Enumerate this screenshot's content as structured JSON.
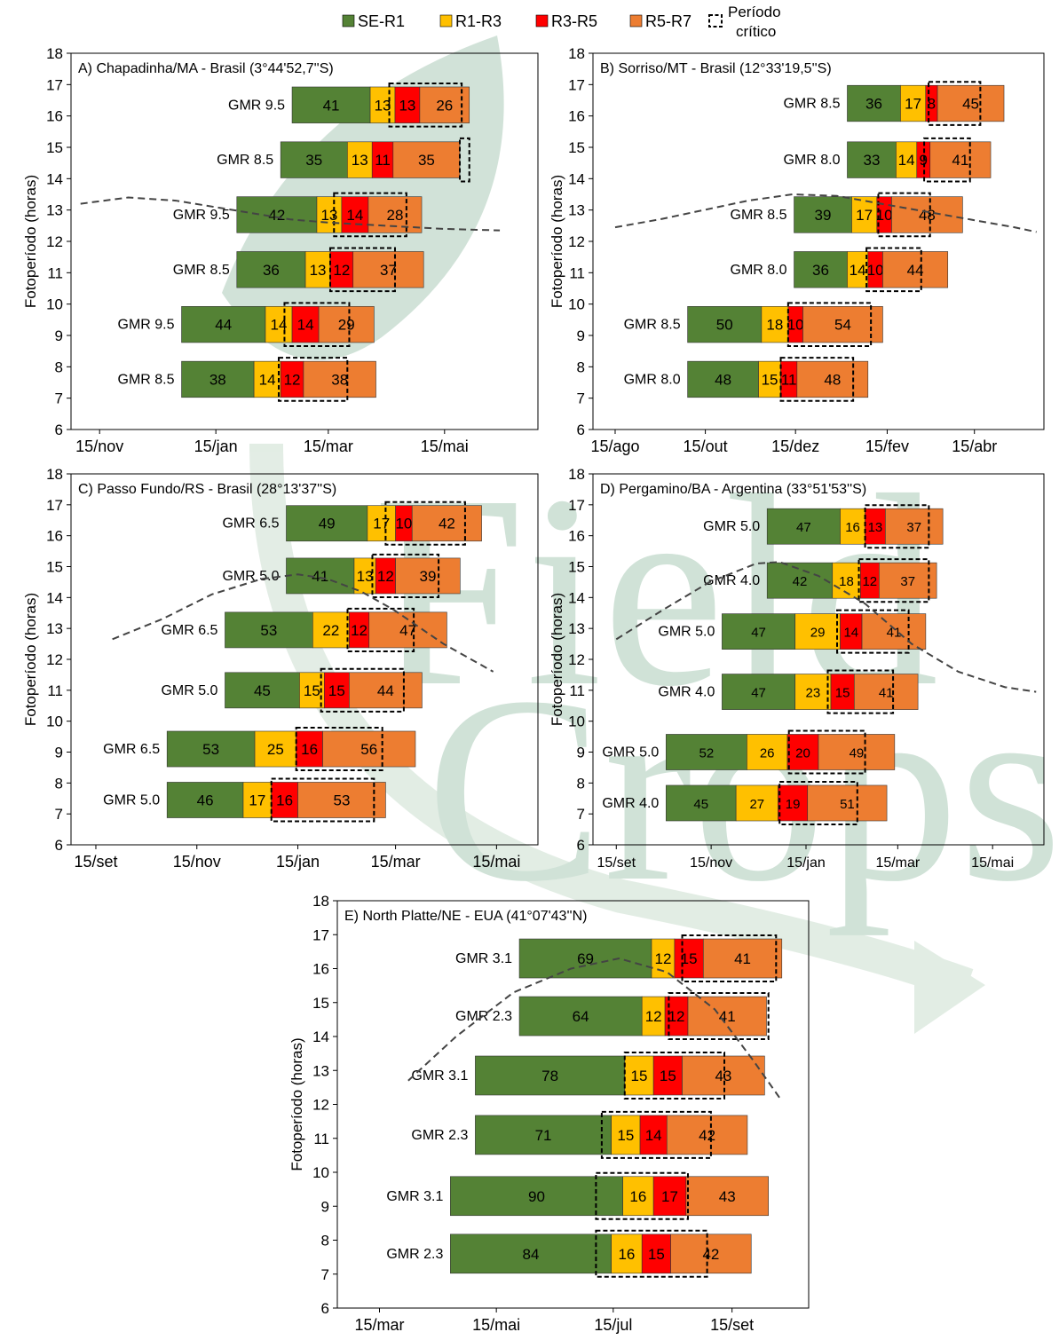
{
  "legend": {
    "items": [
      {
        "label": "SE-R1",
        "color": "#548235"
      },
      {
        "label": "R1-R3",
        "color": "#FFC000"
      },
      {
        "label": "R3-R5",
        "color": "#FF0000"
      },
      {
        "label": "R5-R7",
        "color": "#ED7D31"
      }
    ],
    "critical_label_line1": "Período",
    "critical_label_line2": "crítico"
  },
  "colors": {
    "SE-R1": "#548235",
    "R1-R3": "#FFC000",
    "R3-R5": "#FF0000",
    "R5-R7": "#ED7D31",
    "watermark_green": "#2E7D4F",
    "watermark_light": "#7FAF8A"
  },
  "watermark": {
    "text_line1": "Field",
    "text_line2": "Crops"
  },
  "chart_data": [
    {
      "type": "bar",
      "orientation": "horizontal-stacked-gantt",
      "title": "A) Chapadinha/MA - Brasil (3°44'52,7''S)",
      "ylabel": "Fotoperíodo (horas)",
      "ylim": [
        6,
        18
      ],
      "yticks": [
        6,
        7,
        8,
        9,
        10,
        11,
        12,
        13,
        14,
        15,
        16,
        17,
        18
      ],
      "x_tick_labels": [
        "15/nov",
        "15/jan",
        "15/mar",
        "15/mai"
      ],
      "x_tick_days": [
        0,
        61,
        120,
        181
      ],
      "xlim_days": [
        -15,
        230
      ],
      "rows": [
        {
          "label": "GMR 9.5",
          "y": 16.35,
          "start": 101,
          "phases": [
            41,
            13,
            13,
            26
          ],
          "crit": [
            51,
            89
          ]
        },
        {
          "label": "GMR 8.5",
          "y": 14.6,
          "start": 95,
          "phases": [
            35,
            13,
            11,
            35
          ],
          "crit": [
            94,
            99
          ]
        },
        {
          "label": "GMR 9.5",
          "y": 12.85,
          "start": 72,
          "phases": [
            42,
            13,
            14,
            28
          ],
          "crit": [
            51,
            89
          ]
        },
        {
          "label": "GMR 8.5",
          "y": 11.1,
          "start": 72,
          "phases": [
            36,
            13,
            12,
            37
          ],
          "crit": [
            49,
            83
          ]
        },
        {
          "label": "GMR 9.5",
          "y": 9.35,
          "start": 43,
          "phases": [
            44,
            14,
            14,
            29
          ],
          "crit": [
            54,
            88
          ]
        },
        {
          "label": "GMR 8.5",
          "y": 7.6,
          "start": 43,
          "phases": [
            38,
            14,
            12,
            38
          ],
          "crit": [
            51,
            87
          ]
        }
      ],
      "photoperiod_days": [
        -10,
        15,
        40,
        60,
        80,
        100,
        120,
        150,
        180,
        210
      ],
      "photoperiod_hours": [
        13.2,
        13.4,
        13.3,
        13.1,
        12.9,
        12.7,
        12.6,
        12.5,
        12.4,
        12.35
      ]
    },
    {
      "type": "bar",
      "orientation": "horizontal-stacked-gantt",
      "title": "B) Sorriso/MT - Brasil (12°33'19,5''S)",
      "ylabel": "Fotoperíodo (horas)",
      "ylim": [
        6,
        18
      ],
      "yticks": [
        6,
        7,
        8,
        9,
        10,
        11,
        12,
        13,
        14,
        15,
        16,
        17,
        18
      ],
      "x_tick_labels": [
        "15/ago",
        "15/out",
        "15/dez",
        "15/fev",
        "15/abr"
      ],
      "x_tick_days": [
        0,
        61,
        122,
        184,
        243
      ],
      "xlim_days": [
        -15,
        290
      ],
      "rows": [
        {
          "label": "GMR 8.5",
          "y": 16.4,
          "start": 157,
          "phases": [
            36,
            17,
            8,
            45
          ],
          "crit": [
            55,
            90
          ]
        },
        {
          "label": "GMR 8.0",
          "y": 14.6,
          "start": 157,
          "phases": [
            33,
            14,
            9,
            41
          ],
          "crit": [
            52,
            83
          ]
        },
        {
          "label": "GMR 8.5",
          "y": 12.85,
          "start": 121,
          "phases": [
            39,
            17,
            10,
            48
          ],
          "crit": [
            57,
            92
          ]
        },
        {
          "label": "GMR 8.0",
          "y": 11.1,
          "start": 121,
          "phases": [
            36,
            14,
            10,
            44
          ],
          "crit": [
            49,
            86
          ]
        },
        {
          "label": "GMR 8.5",
          "y": 9.35,
          "start": 49,
          "phases": [
            50,
            18,
            10,
            54
          ],
          "crit": [
            68,
            124
          ]
        },
        {
          "label": "GMR 8.0",
          "y": 7.6,
          "start": 49,
          "phases": [
            48,
            15,
            11,
            48
          ],
          "crit": [
            63,
            112
          ]
        }
      ],
      "photoperiod_days": [
        0,
        30,
        60,
        90,
        120,
        150,
        180,
        210,
        240,
        270,
        285
      ],
      "photoperiod_hours": [
        12.45,
        12.7,
        13.0,
        13.3,
        13.5,
        13.45,
        13.2,
        12.95,
        12.7,
        12.45,
        12.3
      ]
    },
    {
      "type": "bar",
      "orientation": "horizontal-stacked-gantt",
      "title": "C) Passo Fundo/RS - Brasil (28°13'37''S)",
      "ylabel": "Fotoperíodo (horas)",
      "ylim": [
        6,
        18
      ],
      "yticks": [
        6,
        7,
        8,
        9,
        10,
        11,
        12,
        13,
        14,
        15,
        16,
        17,
        18
      ],
      "x_tick_labels": [
        "15/set",
        "15/nov",
        "15/jan",
        "15/mar",
        "15/mai"
      ],
      "x_tick_days": [
        0,
        61,
        122,
        181,
        242
      ],
      "xlim_days": [
        -15,
        267
      ],
      "rows": [
        {
          "label": "GMR 6.5",
          "y": 16.4,
          "start": 115,
          "phases": [
            49,
            17,
            10,
            42
          ],
          "crit": [
            60,
            108
          ]
        },
        {
          "label": "GMR 5.0",
          "y": 14.7,
          "start": 115,
          "phases": [
            41,
            13,
            12,
            39
          ],
          "crit": [
            52,
            92
          ]
        },
        {
          "label": "GMR 6.5",
          "y": 12.95,
          "start": 78,
          "phases": [
            53,
            22,
            12,
            47
          ],
          "crit": [
            74,
            114
          ]
        },
        {
          "label": "GMR 5.0",
          "y": 11.0,
          "start": 78,
          "phases": [
            45,
            15,
            15,
            44
          ],
          "crit": [
            58,
            108
          ]
        },
        {
          "label": "GMR 6.5",
          "y": 9.1,
          "start": 43,
          "phases": [
            53,
            25,
            16,
            56
          ],
          "crit": [
            78,
            130
          ]
        },
        {
          "label": "GMR 5.0",
          "y": 7.45,
          "start": 43,
          "phases": [
            46,
            17,
            16,
            53
          ],
          "crit": [
            63,
            125
          ]
        }
      ],
      "photoperiod_days": [
        10,
        40,
        70,
        100,
        122,
        140,
        160,
        180,
        210,
        240
      ],
      "photoperiod_hours": [
        12.65,
        13.3,
        14.1,
        14.6,
        14.75,
        14.6,
        14.2,
        13.6,
        12.5,
        11.6
      ]
    },
    {
      "type": "bar",
      "orientation": "horizontal-stacked-gantt",
      "title": "D) Pergamino/BA - Argentina (33°51'53''S)",
      "ylabel": "Fotoperíodo (horas)",
      "ylim": [
        6,
        18
      ],
      "yticks": [
        6,
        7,
        8,
        9,
        10,
        11,
        12,
        13,
        14,
        15,
        16,
        17,
        18
      ],
      "x_tick_labels": [
        "15/set",
        "15/nov",
        "15/jan",
        "15/mar",
        "15/mai"
      ],
      "x_tick_days": [
        0,
        61,
        122,
        181,
        242
      ],
      "xlim_days": [
        -15,
        275
      ],
      "rows": [
        {
          "label": "GMR 5.0",
          "y": 16.3,
          "start": 97,
          "phases": [
            47,
            16,
            13,
            37
          ],
          "crit": [
            63,
            104
          ]
        },
        {
          "label": "GMR 4.0",
          "y": 14.55,
          "start": 97,
          "phases": [
            42,
            18,
            12,
            37
          ],
          "crit": [
            59,
            104
          ]
        },
        {
          "label": "GMR 5.0",
          "y": 12.9,
          "start": 68,
          "phases": [
            47,
            29,
            14,
            41
          ],
          "crit": [
            74,
            120
          ]
        },
        {
          "label": "GMR 4.0",
          "y": 10.95,
          "start": 68,
          "phases": [
            47,
            23,
            15,
            41
          ],
          "crit": [
            68,
            110
          ]
        },
        {
          "label": "GMR 5.0",
          "y": 9.0,
          "start": 32,
          "phases": [
            52,
            26,
            20,
            49
          ],
          "crit": [
            79,
            128
          ]
        },
        {
          "label": "GMR 4.0",
          "y": 7.35,
          "start": 32,
          "phases": [
            45,
            27,
            19,
            51
          ],
          "crit": [
            73,
            123
          ]
        }
      ],
      "photoperiod_days": [
        0,
        30,
        60,
        90,
        105,
        130,
        160,
        190,
        220,
        250,
        270
      ],
      "photoperiod_hours": [
        12.65,
        13.6,
        14.5,
        15.1,
        15.15,
        14.7,
        13.8,
        12.5,
        11.6,
        11.1,
        10.95
      ]
    },
    {
      "type": "bar",
      "orientation": "horizontal-stacked-gantt",
      "title": "E) North Platte/NE - EUA (41°07'43''N)",
      "ylabel": "Fotoperíodo (horas)",
      "ylim": [
        6,
        18
      ],
      "yticks": [
        6,
        7,
        8,
        9,
        10,
        11,
        12,
        13,
        14,
        15,
        16,
        17,
        18
      ],
      "x_tick_labels": [
        "15/mar",
        "15/mai",
        "15/jul",
        "15/set"
      ],
      "x_tick_days": [
        0,
        61,
        122,
        184
      ],
      "xlim_days": [
        -22,
        224
      ],
      "rows": [
        {
          "label": "GMR 3.1",
          "y": 16.3,
          "start": 73,
          "phases": [
            69,
            12,
            15,
            41
          ],
          "crit": [
            85,
            134
          ]
        },
        {
          "label": "GMR 2.3",
          "y": 14.6,
          "start": 73,
          "phases": [
            64,
            12,
            12,
            41
          ],
          "crit": [
            78,
            130
          ]
        },
        {
          "label": "GMR 3.1",
          "y": 12.85,
          "start": 50,
          "phases": [
            78,
            15,
            15,
            43
          ],
          "crit": [
            78,
            130
          ]
        },
        {
          "label": "GMR 2.3",
          "y": 11.1,
          "start": 50,
          "phases": [
            71,
            15,
            14,
            42
          ],
          "crit": [
            66,
            123
          ]
        },
        {
          "label": "GMR 3.1",
          "y": 9.3,
          "start": 37,
          "phases": [
            90,
            16,
            17,
            43
          ],
          "crit": [
            76,
            124
          ]
        },
        {
          "label": "GMR 2.3",
          "y": 7.6,
          "start": 37,
          "phases": [
            84,
            16,
            15,
            42
          ],
          "crit": [
            76,
            134
          ]
        }
      ],
      "photoperiod_days": [
        15,
        40,
        70,
        100,
        125,
        150,
        175,
        195,
        210
      ],
      "photoperiod_hours": [
        12.7,
        14.0,
        15.3,
        16.0,
        16.3,
        15.9,
        14.8,
        13.3,
        12.1
      ]
    }
  ]
}
